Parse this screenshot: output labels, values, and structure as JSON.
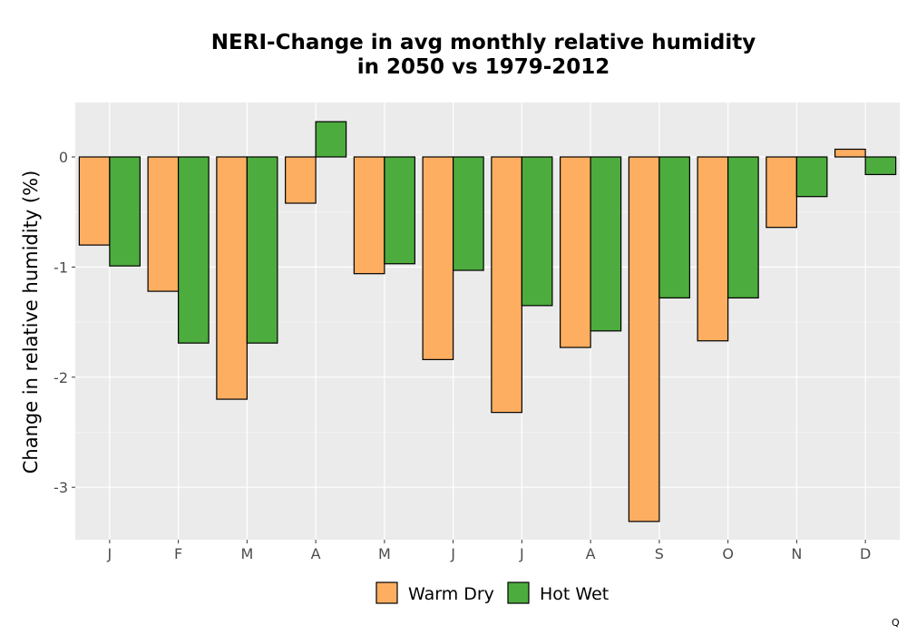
{
  "chart_data": {
    "type": "bar",
    "title": [
      "NERI-Change in avg monthly relative humidity",
      "in 2050 vs 1979-2012"
    ],
    "xlabel": "",
    "ylabel": "Change in relative humidity (%)",
    "categories": [
      "J",
      "F",
      "M",
      "A",
      "M",
      "J",
      "J",
      "A",
      "S",
      "O",
      "N",
      "D"
    ],
    "series": [
      {
        "name": "Warm Dry",
        "color": "#FDAE61",
        "values": [
          -0.8,
          -1.22,
          -2.2,
          -0.42,
          -1.06,
          -1.84,
          -2.32,
          -1.73,
          -3.31,
          -1.67,
          -0.64,
          0.07
        ]
      },
      {
        "name": "Hot Wet",
        "color": "#4DAC3E",
        "values": [
          -0.99,
          -1.69,
          -1.69,
          0.32,
          -0.97,
          -1.03,
          -1.35,
          -1.58,
          -1.28,
          -1.28,
          -0.36,
          -0.16
        ]
      }
    ],
    "ylim": [
      -3.5,
      0.48
    ],
    "yticks": [
      0,
      -1,
      -2,
      -3
    ],
    "ytick_labels": [
      "0",
      "-1",
      "-2",
      "-3"
    ],
    "grid": true,
    "legend_position": "bottom",
    "background": "#EBEBEB",
    "gridline_color": "#FFFFFF"
  },
  "footer_mark": "Q"
}
